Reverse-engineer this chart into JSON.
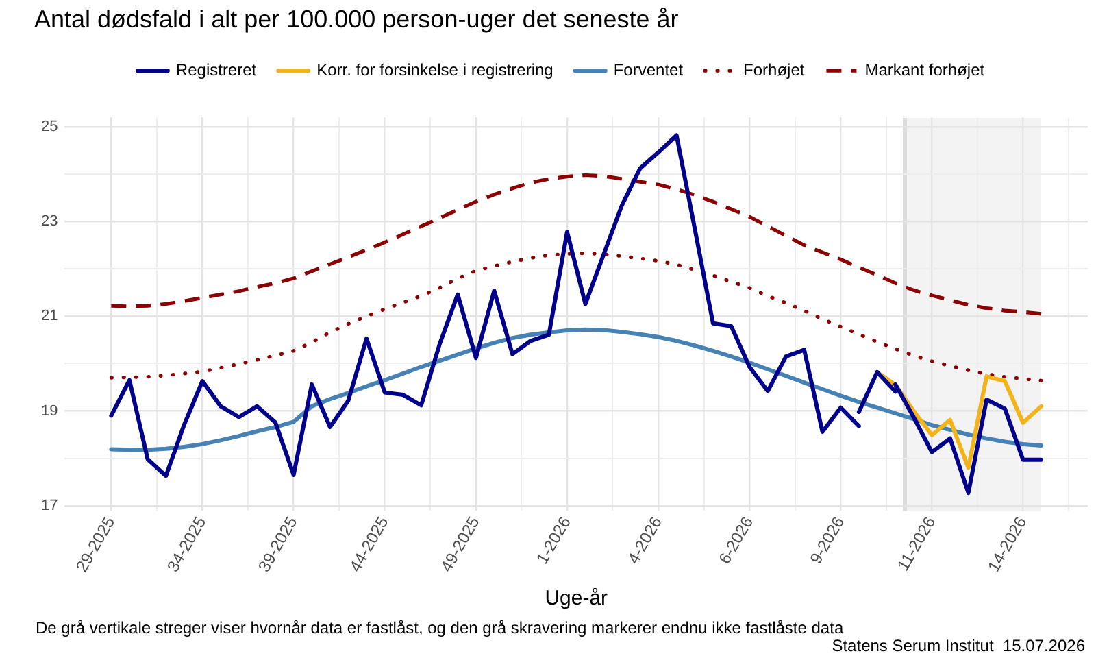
{
  "chart_data": {
    "type": "line",
    "title": "Antal dødsfald i alt per 100.000 person-uger det seneste år",
    "xlabel": "Uge-år",
    "annotations": [
      "De grå vertikale streger viser hvornår data er fastlåst, og den grå skravering markerer endnu ikke fastlåste data",
      "Statens Serum Institut  15.07.2026"
    ],
    "categories": [
      "29-2025",
      null,
      null,
      null,
      null,
      "34-2025",
      null,
      null,
      null,
      null,
      "39-2025",
      null,
      null,
      null,
      null,
      "44-2025",
      null,
      null,
      null,
      null,
      "49-2025",
      null,
      null,
      null,
      null,
      "1-2026",
      null,
      null,
      null,
      null,
      "4-2026",
      null,
      null,
      null,
      null,
      "6-2026",
      null,
      null,
      null,
      null,
      "9-2026",
      null,
      null,
      null,
      null,
      "11-2026",
      null,
      null,
      null,
      null,
      "14-2026",
      null
    ],
    "series": [
      {
        "name": "Registreret",
        "color": "#00008b",
        "values": [
          18.9,
          19.65,
          17.98,
          17.63,
          18.71,
          19.63,
          19.1,
          18.87,
          19.1,
          18.76,
          17.65,
          19.56,
          18.66,
          19.22,
          20.53,
          19.39,
          19.34,
          19.12,
          20.4,
          21.46,
          20.12,
          21.54,
          20.2,
          20.48,
          20.61,
          22.78,
          21.26,
          22.3,
          23.34,
          24.12,
          24.46,
          24.82,
          22.85,
          20.85,
          20.79,
          19.93,
          19.42,
          20.15,
          20.29,
          18.56,
          19.07,
          18.68,
          null,
          null,
          null,
          null,
          null,
          null,
          null,
          null,
          null,
          null
        ]
      },
      {
        "color": "#00008b",
        "values": [
          null,
          null,
          null,
          null,
          null,
          null,
          null,
          null,
          null,
          null,
          null,
          null,
          null,
          null,
          null,
          null,
          null,
          null,
          null,
          null,
          null,
          null,
          null,
          null,
          null,
          null,
          null,
          null,
          null,
          null,
          null,
          null,
          null,
          null,
          null,
          null,
          null,
          null,
          null,
          null,
          null,
          18.98,
          19.82,
          19.41,
          null,
          null,
          null,
          null,
          null,
          null,
          null,
          null
        ]
      },
      {
        "color": "#00008b",
        "values": [
          null,
          null,
          null,
          null,
          null,
          null,
          null,
          null,
          null,
          null,
          null,
          null,
          null,
          null,
          null,
          null,
          null,
          null,
          null,
          null,
          null,
          null,
          null,
          null,
          null,
          null,
          null,
          null,
          null,
          null,
          null,
          null,
          null,
          null,
          null,
          null,
          null,
          null,
          null,
          null,
          null,
          null,
          null,
          19.56,
          18.87,
          18.13,
          18.42,
          17.27,
          19.24,
          19.05,
          17.97,
          17.97
        ]
      },
      {
        "name": "Korr. for forsinkelse i registrering",
        "color": "#f2b31b",
        "values": [
          null,
          null,
          null,
          null,
          null,
          null,
          null,
          null,
          null,
          null,
          null,
          null,
          null,
          null,
          null,
          null,
          null,
          null,
          null,
          null,
          null,
          null,
          null,
          null,
          null,
          null,
          null,
          null,
          null,
          null,
          null,
          null,
          null,
          null,
          null,
          null,
          null,
          null,
          null,
          null,
          null,
          null,
          19.82,
          19.55,
          19.0,
          18.49,
          18.81,
          17.8,
          19.73,
          19.63,
          18.75,
          19.1
        ]
      },
      {
        "name": "Forventet",
        "color": "#4682b4",
        "values": [
          18.19,
          18.18,
          18.18,
          18.2,
          18.24,
          18.3,
          18.38,
          18.47,
          18.57,
          18.66,
          18.77,
          19.1,
          19.25,
          19.38,
          19.52,
          19.65,
          19.79,
          19.93,
          20.06,
          20.19,
          20.32,
          20.44,
          20.54,
          20.61,
          20.66,
          20.7,
          20.72,
          20.71,
          20.67,
          20.62,
          20.56,
          20.48,
          20.38,
          20.27,
          20.15,
          20.02,
          19.88,
          19.74,
          19.6,
          19.46,
          19.32,
          19.19,
          19.07,
          18.95,
          18.83,
          18.7,
          18.6,
          18.5,
          18.42,
          18.35,
          18.3,
          18.27
        ]
      },
      {
        "name": "Forhøjet",
        "color": "#8b0000",
        "line_style": "dotted",
        "values": [
          19.7,
          19.71,
          19.72,
          19.75,
          19.79,
          19.83,
          19.91,
          19.99,
          20.08,
          20.17,
          20.27,
          20.45,
          20.66,
          20.84,
          21.0,
          21.15,
          21.29,
          21.43,
          21.6,
          21.8,
          21.96,
          22.06,
          22.15,
          22.23,
          22.29,
          22.32,
          22.33,
          22.31,
          22.27,
          22.22,
          22.17,
          22.09,
          21.98,
          21.86,
          21.73,
          21.6,
          21.43,
          21.28,
          21.12,
          20.94,
          20.78,
          20.62,
          20.46,
          20.31,
          20.17,
          20.05,
          19.95,
          19.86,
          19.78,
          19.72,
          19.68,
          19.64
        ]
      },
      {
        "name": "Markant forhøjet",
        "color": "#8b0000",
        "line_style": "dashed",
        "values": [
          21.22,
          21.21,
          21.22,
          21.26,
          21.32,
          21.39,
          21.46,
          21.53,
          21.62,
          21.7,
          21.8,
          21.95,
          22.1,
          22.25,
          22.4,
          22.56,
          22.73,
          22.9,
          23.07,
          23.25,
          23.42,
          23.57,
          23.7,
          23.82,
          23.9,
          23.95,
          23.98,
          23.96,
          23.9,
          23.84,
          23.78,
          23.68,
          23.56,
          23.42,
          23.26,
          23.1,
          22.9,
          22.7,
          22.5,
          22.35,
          22.2,
          22.03,
          21.87,
          21.7,
          21.55,
          21.44,
          21.34,
          21.24,
          21.17,
          21.12,
          21.09,
          21.05
        ]
      }
    ],
    "ylim": [
      16.89,
      25.2
    ],
    "yticks": [
      17,
      {
        "value": 18,
        "label": null
      },
      19,
      {
        "value": 20,
        "label": null
      },
      21,
      {
        "value": 22,
        "label": null
      },
      23,
      {
        "value": 24,
        "label": null
      },
      25
    ],
    "grid": true,
    "legend": "top",
    "marker": "none",
    "line_style": "solid"
  }
}
